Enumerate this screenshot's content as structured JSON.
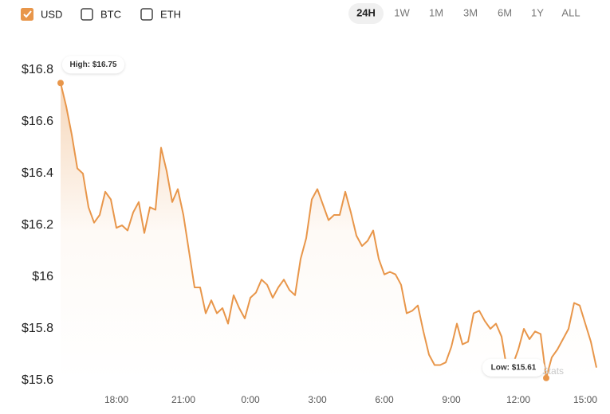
{
  "controls": {
    "currencies": [
      {
        "label": "USD",
        "checked": true
      },
      {
        "label": "BTC",
        "checked": false
      },
      {
        "label": "ETH",
        "checked": false
      }
    ],
    "ranges": [
      "24H",
      "1W",
      "1M",
      "3M",
      "6M",
      "1Y",
      "ALL"
    ],
    "selected_range": "24H"
  },
  "chart_data": {
    "type": "line",
    "color": "#e8964a",
    "grid": false,
    "fill": true,
    "watermark": "CoinStats",
    "x": [
      15.5,
      15.75,
      16,
      16.25,
      16.5,
      16.75,
      17,
      17.25,
      17.5,
      17.75,
      18,
      18.25,
      18.5,
      18.75,
      19,
      19.25,
      19.5,
      19.75,
      20,
      20.25,
      20.5,
      20.75,
      21,
      21.25,
      21.5,
      21.75,
      22,
      22.25,
      22.5,
      22.75,
      23,
      23.25,
      23.5,
      23.75,
      24,
      24.25,
      24.5,
      24.75,
      25,
      25.25,
      25.5,
      25.75,
      26,
      26.25,
      26.5,
      26.75,
      27,
      27.25,
      27.5,
      27.75,
      28,
      28.25,
      28.5,
      28.75,
      29,
      29.25,
      29.5,
      29.75,
      30,
      30.25,
      30.5,
      30.75,
      31,
      31.25,
      31.5,
      31.75,
      32,
      32.25,
      32.5,
      32.75,
      33,
      33.25,
      33.5,
      33.75,
      34,
      34.25,
      34.5,
      34.75,
      35,
      35.25,
      35.5,
      35.75,
      36,
      36.25,
      36.5,
      36.75,
      37,
      37.25,
      37.5,
      37.75,
      38,
      38.25,
      38.5,
      38.75,
      39,
      39.25,
      39.5
    ],
    "values": [
      16.75,
      16.66,
      16.55,
      16.42,
      16.4,
      16.27,
      16.21,
      16.24,
      16.33,
      16.3,
      16.19,
      16.2,
      16.18,
      16.25,
      16.29,
      16.17,
      16.27,
      16.26,
      16.5,
      16.41,
      16.29,
      16.34,
      16.24,
      16.1,
      15.96,
      15.96,
      15.86,
      15.91,
      15.86,
      15.88,
      15.82,
      15.93,
      15.88,
      15.84,
      15.92,
      15.94,
      15.99,
      15.97,
      15.92,
      15.96,
      15.99,
      15.95,
      15.93,
      16.07,
      16.15,
      16.3,
      16.34,
      16.28,
      16.22,
      16.24,
      16.24,
      16.33,
      16.25,
      16.16,
      16.12,
      16.14,
      16.18,
      16.07,
      16.01,
      16.02,
      16.01,
      15.97,
      15.86,
      15.87,
      15.89,
      15.79,
      15.7,
      15.66,
      15.66,
      15.67,
      15.73,
      15.82,
      15.74,
      15.75,
      15.86,
      15.87,
      15.83,
      15.8,
      15.82,
      15.77,
      15.64,
      15.66,
      15.72,
      15.8,
      15.76,
      15.79,
      15.78,
      15.61,
      15.69,
      15.72,
      15.76,
      15.8,
      15.9,
      15.89,
      15.82,
      15.75,
      15.65
    ],
    "xlim": [
      15.5,
      39.5
    ],
    "xticks": [
      {
        "value": 18,
        "label": "18:00"
      },
      {
        "value": 21,
        "label": "21:00"
      },
      {
        "value": 24,
        "label": "0:00"
      },
      {
        "value": 27,
        "label": "3:00"
      },
      {
        "value": 30,
        "label": "6:00"
      },
      {
        "value": 33,
        "label": "9:00"
      },
      {
        "value": 36,
        "label": "12:00"
      },
      {
        "value": 39,
        "label": "15:00"
      }
    ],
    "ylim": [
      15.6,
      16.8
    ],
    "yticks": [
      {
        "value": 15.6,
        "label": "$15.6"
      },
      {
        "value": 15.8,
        "label": "$15.8"
      },
      {
        "value": 16,
        "label": "$16"
      },
      {
        "value": 16.2,
        "label": "$16.2"
      },
      {
        "value": 16.4,
        "label": "$16.4"
      },
      {
        "value": 16.6,
        "label": "$16.6"
      },
      {
        "value": 16.8,
        "label": "$16.8"
      }
    ],
    "annotations": [
      {
        "text": "High: $16.75",
        "x": 15.5,
        "y": 16.75,
        "side": "above"
      },
      {
        "text": "Low: $15.61",
        "x": 37.25,
        "y": 15.61,
        "side": "left"
      }
    ]
  }
}
